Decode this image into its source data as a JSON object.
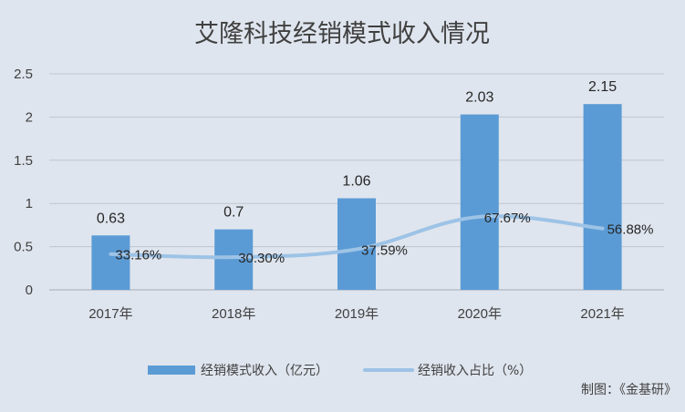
{
  "chart_data": {
    "type": "bar",
    "title": "艾隆科技经销模式收入情况",
    "categories": [
      "2017年",
      "2018年",
      "2019年",
      "2020年",
      "2021年"
    ],
    "series": [
      {
        "name": "经销模式收入（亿元）",
        "type": "bar",
        "axis": "left",
        "values": [
          0.63,
          0.7,
          1.06,
          2.03,
          2.15
        ],
        "labels": [
          "0.63",
          "0.7",
          "1.06",
          "2.03",
          "2.15"
        ],
        "color": "#5b9bd5"
      },
      {
        "name": "经销收入占比（%）",
        "type": "line",
        "axis": "secondary",
        "values": [
          33.16,
          30.3,
          37.59,
          67.67,
          56.88
        ],
        "labels": [
          "33.16%",
          "30.30%",
          "37.59%",
          "67.67%",
          "56.88%"
        ],
        "color": "#9dc3e6"
      }
    ],
    "ylim": [
      0,
      2.5
    ],
    "yticks": [
      "0",
      "0.5",
      "1",
      "1.5",
      "2",
      "2.5"
    ],
    "secondary_ylim": [
      0,
      200
    ],
    "grid": true,
    "legend": "bottom"
  },
  "source_note": "制图：《金基研》",
  "colors": {
    "background": "#dfe5ee",
    "grid": "#c0c6ce",
    "bar": "#5b9bd5",
    "line": "#9dc3e6"
  }
}
